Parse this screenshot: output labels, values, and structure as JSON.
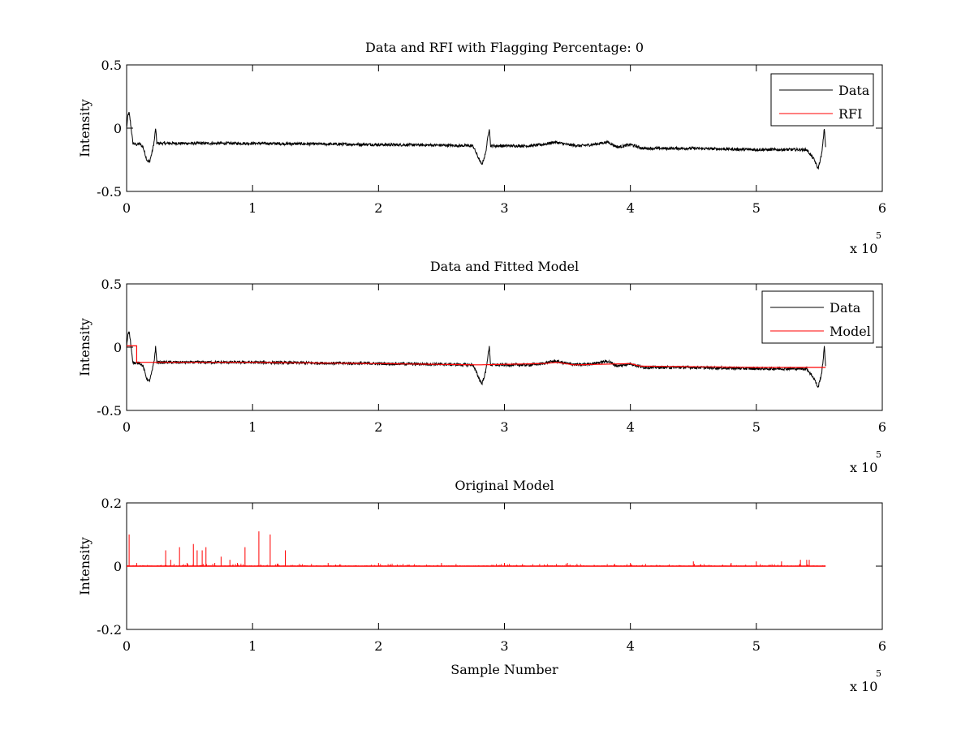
{
  "chart_data": [
    {
      "type": "line",
      "title": "Data and RFI with Flagging Percentage: 0",
      "xlabel": "",
      "ylabel": "Intensity",
      "xlim": [
        0,
        6
      ],
      "ylim": [
        -0.5,
        0.5
      ],
      "xticks": [
        "0",
        "1",
        "2",
        "3",
        "4",
        "5",
        "6"
      ],
      "yticks": [
        "-0.5",
        "0",
        "0.5"
      ],
      "x_exponent_base": "x 10",
      "x_exponent_power": "5",
      "legend": {
        "position": "top-right",
        "entries": [
          "Data",
          "RFI"
        ]
      },
      "series": [
        {
          "name": "Data",
          "color": "#000000",
          "points": [
            [
              0.0,
              0.0
            ],
            [
              0.01,
              0.1
            ],
            [
              0.02,
              0.12
            ],
            [
              0.03,
              0.05
            ],
            [
              0.05,
              -0.12
            ],
            [
              0.08,
              -0.13
            ],
            [
              0.1,
              -0.12
            ],
            [
              0.13,
              -0.15
            ],
            [
              0.16,
              -0.25
            ],
            [
              0.18,
              -0.27
            ],
            [
              0.2,
              -0.2
            ],
            [
              0.22,
              -0.1
            ],
            [
              0.23,
              0.0
            ],
            [
              0.24,
              -0.12
            ],
            [
              0.5,
              -0.12
            ],
            [
              1.0,
              -0.12
            ],
            [
              1.5,
              -0.125
            ],
            [
              2.0,
              -0.13
            ],
            [
              2.5,
              -0.135
            ],
            [
              2.75,
              -0.14
            ],
            [
              2.8,
              -0.25
            ],
            [
              2.82,
              -0.29
            ],
            [
              2.85,
              -0.2
            ],
            [
              2.87,
              -0.06
            ],
            [
              2.88,
              0.0
            ],
            [
              2.89,
              -0.14
            ],
            [
              3.2,
              -0.14
            ],
            [
              3.3,
              -0.13
            ],
            [
              3.4,
              -0.11
            ],
            [
              3.5,
              -0.13
            ],
            [
              3.6,
              -0.14
            ],
            [
              3.7,
              -0.13
            ],
            [
              3.82,
              -0.11
            ],
            [
              3.9,
              -0.15
            ],
            [
              4.0,
              -0.13
            ],
            [
              4.1,
              -0.16
            ],
            [
              4.5,
              -0.16
            ],
            [
              5.0,
              -0.17
            ],
            [
              5.4,
              -0.17
            ],
            [
              5.46,
              -0.25
            ],
            [
              5.49,
              -0.32
            ],
            [
              5.52,
              -0.2
            ],
            [
              5.54,
              0.0
            ],
            [
              5.55,
              -0.15
            ]
          ]
        },
        {
          "name": "RFI",
          "color": "#ff0000",
          "points": []
        }
      ]
    },
    {
      "type": "line",
      "title": "Data and Fitted Model",
      "xlabel": "",
      "ylabel": "Intensity",
      "xlim": [
        0,
        6
      ],
      "ylim": [
        -0.5,
        0.5
      ],
      "xticks": [
        "0",
        "1",
        "2",
        "3",
        "4",
        "5",
        "6"
      ],
      "yticks": [
        "-0.5",
        "0",
        "0.5"
      ],
      "x_exponent_base": "x 10",
      "x_exponent_power": "5",
      "legend": {
        "position": "top-right",
        "entries": [
          "Data",
          "Model"
        ]
      },
      "series": [
        {
          "name": "Data",
          "color": "#000000",
          "points": [
            [
              0.0,
              0.0
            ],
            [
              0.01,
              0.1
            ],
            [
              0.02,
              0.12
            ],
            [
              0.03,
              0.05
            ],
            [
              0.05,
              -0.12
            ],
            [
              0.08,
              -0.13
            ],
            [
              0.1,
              -0.12
            ],
            [
              0.13,
              -0.15
            ],
            [
              0.16,
              -0.25
            ],
            [
              0.18,
              -0.27
            ],
            [
              0.2,
              -0.2
            ],
            [
              0.22,
              -0.1
            ],
            [
              0.23,
              0.0
            ],
            [
              0.24,
              -0.12
            ],
            [
              0.5,
              -0.12
            ],
            [
              1.0,
              -0.12
            ],
            [
              1.5,
              -0.125
            ],
            [
              2.0,
              -0.13
            ],
            [
              2.5,
              -0.135
            ],
            [
              2.75,
              -0.14
            ],
            [
              2.8,
              -0.25
            ],
            [
              2.82,
              -0.29
            ],
            [
              2.85,
              -0.2
            ],
            [
              2.87,
              -0.06
            ],
            [
              2.88,
              0.0
            ],
            [
              2.89,
              -0.14
            ],
            [
              3.2,
              -0.14
            ],
            [
              3.3,
              -0.13
            ],
            [
              3.4,
              -0.11
            ],
            [
              3.5,
              -0.13
            ],
            [
              3.6,
              -0.14
            ],
            [
              3.7,
              -0.13
            ],
            [
              3.82,
              -0.11
            ],
            [
              3.9,
              -0.15
            ],
            [
              4.0,
              -0.13
            ],
            [
              4.1,
              -0.16
            ],
            [
              4.5,
              -0.16
            ],
            [
              5.0,
              -0.17
            ],
            [
              5.4,
              -0.17
            ],
            [
              5.46,
              -0.25
            ],
            [
              5.49,
              -0.32
            ],
            [
              5.52,
              -0.2
            ],
            [
              5.54,
              0.0
            ],
            [
              5.55,
              -0.15
            ]
          ]
        },
        {
          "name": "Model",
          "color": "#ff0000",
          "points": [
            [
              0.0,
              0.01
            ],
            [
              0.08,
              0.01
            ],
            [
              0.08,
              -0.12
            ],
            [
              1.0,
              -0.12
            ],
            [
              2.0,
              -0.13
            ],
            [
              2.8,
              -0.14
            ],
            [
              3.3,
              -0.13
            ],
            [
              3.42,
              -0.12
            ],
            [
              3.55,
              -0.14
            ],
            [
              4.0,
              -0.13
            ],
            [
              4.08,
              -0.15
            ],
            [
              5.0,
              -0.16
            ],
            [
              5.55,
              -0.16
            ]
          ]
        }
      ]
    },
    {
      "type": "line",
      "title": "Original Model",
      "xlabel": "Sample Number",
      "ylabel": "Intensity",
      "xlim": [
        0,
        6
      ],
      "ylim": [
        -0.2,
        0.2
      ],
      "xticks": [
        "0",
        "1",
        "2",
        "3",
        "4",
        "5",
        "6"
      ],
      "yticks": [
        "-0.2",
        "0",
        "0.2"
      ],
      "x_exponent_base": "x 10",
      "x_exponent_power": "5",
      "legend": null,
      "series": [
        {
          "name": "",
          "color": "#ff0000",
          "baseline": [
            [
              0,
              0.0
            ],
            [
              5.55,
              0.0
            ]
          ],
          "spikes": [
            [
              0.02,
              0.1
            ],
            [
              0.08,
              0.01
            ],
            [
              0.31,
              0.05
            ],
            [
              0.35,
              0.02
            ],
            [
              0.42,
              0.06
            ],
            [
              0.48,
              0.01
            ],
            [
              0.53,
              0.07
            ],
            [
              0.56,
              0.05
            ],
            [
              0.6,
              0.05
            ],
            [
              0.63,
              0.06
            ],
            [
              0.7,
              0.01
            ],
            [
              0.75,
              0.03
            ],
            [
              0.82,
              0.02
            ],
            [
              0.88,
              0.01
            ],
            [
              0.94,
              0.06
            ],
            [
              1.05,
              0.11
            ],
            [
              1.14,
              0.1
            ],
            [
              1.26,
              0.05
            ],
            [
              1.6,
              0.01
            ],
            [
              2.0,
              0.01
            ],
            [
              2.5,
              0.01
            ],
            [
              3.0,
              0.01
            ],
            [
              3.5,
              0.01
            ],
            [
              4.0,
              0.01
            ],
            [
              4.5,
              0.015
            ],
            [
              4.8,
              0.01
            ],
            [
              5.0,
              0.015
            ],
            [
              5.2,
              0.015
            ],
            [
              5.35,
              0.02
            ],
            [
              5.4,
              0.02
            ],
            [
              5.42,
              0.02
            ]
          ]
        }
      ]
    }
  ]
}
